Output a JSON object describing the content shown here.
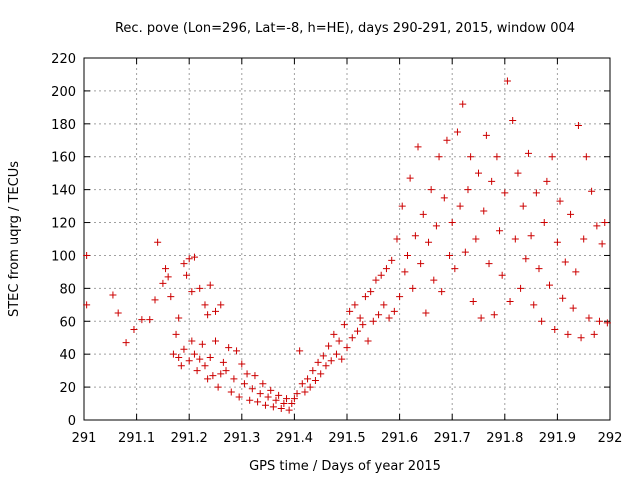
{
  "chart_data": {
    "type": "scatter",
    "title": "Rec. pove (Lon=296, Lat=-8, h=HE), days 290-291, 2015, window 004",
    "xlabel": "GPS time / Days of year 2015",
    "ylabel": "STEC from uqrg / TECUs",
    "xlim": [
      291,
      292
    ],
    "ylim": [
      0,
      220
    ],
    "grid": true,
    "marker": "+",
    "color": "#cc0000",
    "x_ticks": [
      "291",
      "291.1",
      "291.2",
      "291.3",
      "291.4",
      "291.5",
      "291.6",
      "291.7",
      "291.8",
      "291.9",
      "292"
    ],
    "y_ticks": [
      "0",
      "20",
      "40",
      "60",
      "80",
      "100",
      "120",
      "140",
      "160",
      "180",
      "200",
      "220"
    ],
    "points": [
      [
        291.005,
        100
      ],
      [
        291.005,
        70
      ],
      [
        291.055,
        76
      ],
      [
        291.065,
        65
      ],
      [
        291.08,
        47
      ],
      [
        291.095,
        55
      ],
      [
        291.11,
        61
      ],
      [
        291.125,
        61
      ],
      [
        291.135,
        73
      ],
      [
        291.14,
        108
      ],
      [
        291.15,
        83
      ],
      [
        291.155,
        92
      ],
      [
        291.16,
        87
      ],
      [
        291.165,
        75
      ],
      [
        291.18,
        38
      ],
      [
        291.185,
        33
      ],
      [
        291.19,
        95
      ],
      [
        291.195,
        88
      ],
      [
        291.2,
        98
      ],
      [
        291.205,
        78
      ],
      [
        291.21,
        99
      ],
      [
        291.22,
        80
      ],
      [
        291.23,
        70
      ],
      [
        291.235,
        64
      ],
      [
        291.24,
        82
      ],
      [
        291.25,
        66
      ],
      [
        291.26,
        70
      ],
      [
        291.17,
        40
      ],
      [
        291.175,
        52
      ],
      [
        291.18,
        62
      ],
      [
        291.19,
        43
      ],
      [
        291.2,
        36
      ],
      [
        291.205,
        48
      ],
      [
        291.21,
        40
      ],
      [
        291.215,
        30
      ],
      [
        291.22,
        37
      ],
      [
        291.225,
        46
      ],
      [
        291.23,
        33
      ],
      [
        291.235,
        25
      ],
      [
        291.24,
        38
      ],
      [
        291.245,
        27
      ],
      [
        291.25,
        48
      ],
      [
        291.255,
        20
      ],
      [
        291.26,
        28
      ],
      [
        291.265,
        35
      ],
      [
        291.27,
        30
      ],
      [
        291.275,
        44
      ],
      [
        291.28,
        17
      ],
      [
        291.285,
        25
      ],
      [
        291.29,
        42
      ],
      [
        291.295,
        14
      ],
      [
        291.3,
        34
      ],
      [
        291.305,
        22
      ],
      [
        291.31,
        28
      ],
      [
        291.315,
        12
      ],
      [
        291.32,
        19
      ],
      [
        291.325,
        27
      ],
      [
        291.33,
        11
      ],
      [
        291.335,
        16
      ],
      [
        291.34,
        22
      ],
      [
        291.345,
        9
      ],
      [
        291.35,
        14
      ],
      [
        291.355,
        18
      ],
      [
        291.36,
        8
      ],
      [
        291.365,
        12
      ],
      [
        291.37,
        15
      ],
      [
        291.375,
        7
      ],
      [
        291.38,
        10
      ],
      [
        291.385,
        13
      ],
      [
        291.39,
        6
      ],
      [
        291.395,
        10
      ],
      [
        291.4,
        13
      ],
      [
        291.405,
        16
      ],
      [
        291.41,
        42
      ],
      [
        291.415,
        22
      ],
      [
        291.42,
        17
      ],
      [
        291.425,
        25
      ],
      [
        291.43,
        20
      ],
      [
        291.435,
        30
      ],
      [
        291.44,
        24
      ],
      [
        291.445,
        35
      ],
      [
        291.45,
        28
      ],
      [
        291.455,
        39
      ],
      [
        291.46,
        33
      ],
      [
        291.465,
        45
      ],
      [
        291.47,
        36
      ],
      [
        291.475,
        52
      ],
      [
        291.48,
        40
      ],
      [
        291.485,
        48
      ],
      [
        291.49,
        37
      ],
      [
        291.495,
        58
      ],
      [
        291.5,
        44
      ],
      [
        291.505,
        66
      ],
      [
        291.51,
        50
      ],
      [
        291.515,
        70
      ],
      [
        291.52,
        54
      ],
      [
        291.525,
        62
      ],
      [
        291.53,
        58
      ],
      [
        291.535,
        75
      ],
      [
        291.54,
        48
      ],
      [
        291.545,
        78
      ],
      [
        291.55,
        60
      ],
      [
        291.555,
        85
      ],
      [
        291.56,
        64
      ],
      [
        291.565,
        88
      ],
      [
        291.57,
        70
      ],
      [
        291.575,
        92
      ],
      [
        291.58,
        62
      ],
      [
        291.585,
        97
      ],
      [
        291.59,
        66
      ],
      [
        291.595,
        110
      ],
      [
        291.6,
        75
      ],
      [
        291.605,
        130
      ],
      [
        291.61,
        90
      ],
      [
        291.615,
        100
      ],
      [
        291.62,
        147
      ],
      [
        291.625,
        80
      ],
      [
        291.63,
        112
      ],
      [
        291.635,
        166
      ],
      [
        291.64,
        95
      ],
      [
        291.645,
        125
      ],
      [
        291.65,
        65
      ],
      [
        291.655,
        108
      ],
      [
        291.66,
        140
      ],
      [
        291.665,
        85
      ],
      [
        291.67,
        118
      ],
      [
        291.675,
        160
      ],
      [
        291.68,
        78
      ],
      [
        291.685,
        135
      ],
      [
        291.69,
        170
      ],
      [
        291.695,
        100
      ],
      [
        291.7,
        120
      ],
      [
        291.705,
        92
      ],
      [
        291.71,
        175
      ],
      [
        291.715,
        130
      ],
      [
        291.72,
        192
      ],
      [
        291.725,
        102
      ],
      [
        291.73,
        140
      ],
      [
        291.735,
        160
      ],
      [
        291.74,
        72
      ],
      [
        291.745,
        110
      ],
      [
        291.75,
        150
      ],
      [
        291.755,
        62
      ],
      [
        291.76,
        127
      ],
      [
        291.765,
        173
      ],
      [
        291.77,
        95
      ],
      [
        291.775,
        145
      ],
      [
        291.78,
        64
      ],
      [
        291.785,
        160
      ],
      [
        291.79,
        115
      ],
      [
        291.795,
        88
      ],
      [
        291.8,
        138
      ],
      [
        291.805,
        206
      ],
      [
        291.81,
        72
      ],
      [
        291.815,
        182
      ],
      [
        291.82,
        110
      ],
      [
        291.825,
        150
      ],
      [
        291.83,
        80
      ],
      [
        291.835,
        130
      ],
      [
        291.84,
        98
      ],
      [
        291.845,
        162
      ],
      [
        291.85,
        112
      ],
      [
        291.855,
        70
      ],
      [
        291.86,
        138
      ],
      [
        291.865,
        92
      ],
      [
        291.87,
        60
      ],
      [
        291.875,
        120
      ],
      [
        291.88,
        145
      ],
      [
        291.885,
        82
      ],
      [
        291.89,
        160
      ],
      [
        291.895,
        55
      ],
      [
        291.9,
        108
      ],
      [
        291.905,
        133
      ],
      [
        291.91,
        74
      ],
      [
        291.915,
        96
      ],
      [
        291.92,
        52
      ],
      [
        291.925,
        125
      ],
      [
        291.93,
        68
      ],
      [
        291.935,
        90
      ],
      [
        291.94,
        179
      ],
      [
        291.945,
        50
      ],
      [
        291.95,
        110
      ],
      [
        291.955,
        160
      ],
      [
        291.96,
        62
      ],
      [
        291.965,
        139
      ],
      [
        291.97,
        52
      ],
      [
        291.975,
        118
      ],
      [
        291.98,
        60
      ],
      [
        291.985,
        107
      ],
      [
        291.99,
        120
      ],
      [
        291.995,
        59
      ]
    ]
  }
}
